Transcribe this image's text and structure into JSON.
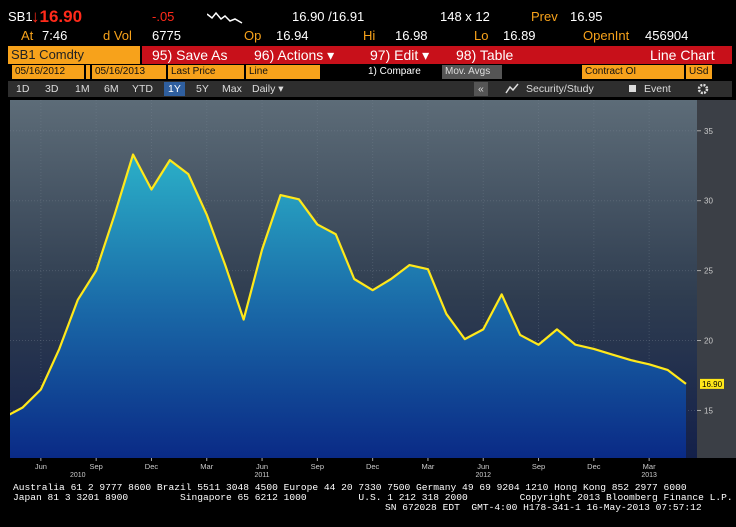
{
  "header": {
    "ticker": "SB1",
    "last": "↓16.90",
    "change": "-.05",
    "bid_ask": "16.90 /16.91",
    "size": "148 x 12",
    "prev_label": "Prev",
    "prev": "16.95",
    "time_label": "At",
    "time": "7:46",
    "vol_label": "d Vol",
    "vol": "6775",
    "open_label": "Op",
    "open": "16.94",
    "high_label": "Hi",
    "high": "16.98",
    "low_label": "Lo",
    "low": "16.89",
    "oi_label": "OpenInt",
    "oi": "456904"
  },
  "toolbar": {
    "security": "SB1 Comdty",
    "buttons": [
      "95) Save As",
      "96) Actions ▾",
      "97) Edit ▾",
      "98) Table"
    ],
    "view": "Line Chart",
    "start_date": "05/16/2012",
    "end_date": "05/16/2013",
    "field": "Last Price",
    "style": "Line",
    "compare": "1) Compare",
    "mov_avgs": "Mov. Avgs",
    "contract": "Contract OI",
    "currency": "USd",
    "ranges": [
      "1D",
      "3D",
      "1M",
      "6M",
      "YTD",
      "1Y",
      "5Y",
      "Max"
    ],
    "active_range": "1Y",
    "frequency": "Daily ▾",
    "collapse": "«",
    "study": "Security/Study",
    "event": "Event"
  },
  "chart_data": {
    "type": "line",
    "x": [
      "2010-04",
      "2010-05",
      "2010-06",
      "2010-07",
      "2010-08",
      "2010-09",
      "2010-10",
      "2010-11",
      "2010-12",
      "2011-01",
      "2011-02",
      "2011-03",
      "2011-04",
      "2011-05",
      "2011-06",
      "2011-07",
      "2011-08",
      "2011-09",
      "2011-10",
      "2011-11",
      "2011-12",
      "2012-01",
      "2012-02",
      "2012-03",
      "2012-04",
      "2012-05",
      "2012-06",
      "2012-07",
      "2012-08",
      "2012-09",
      "2012-10",
      "2012-11",
      "2012-12",
      "2013-01",
      "2013-02",
      "2013-03",
      "2013-04",
      "2013-05"
    ],
    "series": [
      {
        "name": "SB1 Comdty",
        "color": "#ffe81a",
        "values": [
          14.5,
          15.2,
          16.5,
          19.4,
          22.9,
          25,
          29,
          33.3,
          30.8,
          32.9,
          31.9,
          29,
          25.4,
          21.5,
          26.5,
          30.4,
          30.1,
          28.3,
          27.6,
          24.4,
          23.6,
          24.4,
          25.4,
          25.1,
          21.9,
          20.1,
          20.8,
          23.3,
          20.4,
          19.7,
          20.8,
          19.7,
          19.4,
          19,
          18.6,
          18.3,
          17.9,
          16.9
        ],
        "value_labels": [
          null,
          null,
          null,
          null,
          null,
          null,
          null,
          null,
          null,
          null,
          null,
          null,
          null,
          null,
          null,
          null,
          null,
          null,
          null,
          null,
          null,
          null,
          null,
          null,
          null,
          null,
          null,
          null,
          null,
          null,
          null,
          null,
          null,
          null,
          null,
          null,
          null,
          "16.90"
        ]
      }
    ],
    "xlim": [
      "2010-04",
      "2013-05"
    ],
    "xticks": [
      {
        "value": "2010-06",
        "label": "Jun"
      },
      {
        "value": "2010-09",
        "label": "Sep"
      },
      {
        "value": "2010-12",
        "label": "Dec"
      },
      {
        "value": "2011-03",
        "label": "Mar"
      },
      {
        "value": "2011-06",
        "label": "Jun"
      },
      {
        "value": "2011-09",
        "label": "Sep"
      },
      {
        "value": "2011-12",
        "label": "Dec"
      },
      {
        "value": "2012-03",
        "label": "Mar"
      },
      {
        "value": "2012-06",
        "label": "Jun"
      },
      {
        "value": "2012-09",
        "label": "Sep"
      },
      {
        "value": "2012-12",
        "label": "Dec"
      },
      {
        "value": "2013-03",
        "label": "Mar"
      }
    ],
    "xtick_years": [
      {
        "value": "2010-08",
        "label": "2010"
      },
      {
        "value": "2011-06",
        "label": "2011"
      },
      {
        "value": "2012-06",
        "label": "2012"
      },
      {
        "value": "2013-03",
        "label": "2013"
      }
    ],
    "ylim": [
      11.6,
      37.2
    ],
    "yticks": [
      15,
      20,
      25,
      30,
      35
    ],
    "grid": true
  },
  "footer": {
    "lines": [
      "Australia 61 2 9777 8600 Brazil 5511 3048 4500 Europe 44 20 7330 7500 Germany 49 69 9204 1210 Hong Kong 852 2977 6000",
      "Japan 81 3 3201 8900         Singapore 65 6212 1000         U.S. 1 212 318 2000         Copyright 2013 Bloomberg Finance L.P.",
      "SN 672028 EDT  GMT-4:00 H178-341-1 16-May-2013 07:57:12"
    ]
  }
}
